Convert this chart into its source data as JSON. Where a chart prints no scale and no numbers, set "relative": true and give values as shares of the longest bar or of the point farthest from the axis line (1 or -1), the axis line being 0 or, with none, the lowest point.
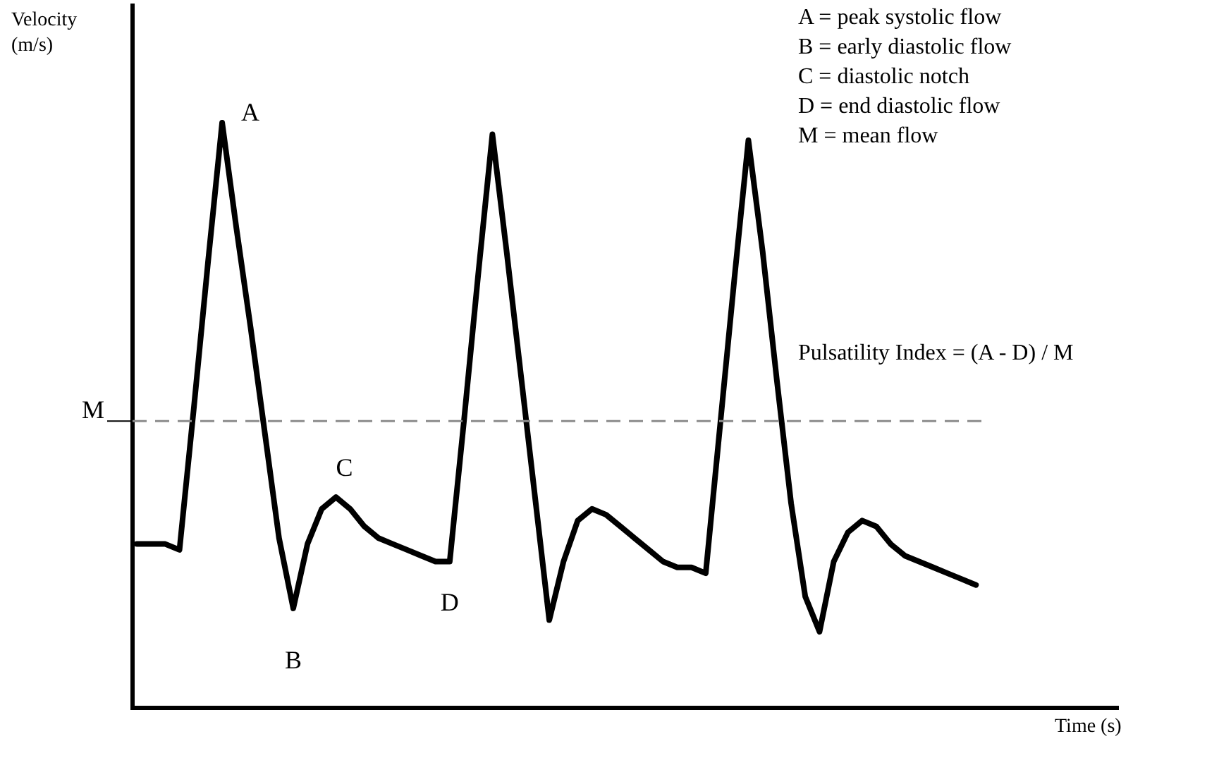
{
  "chart_data": {
    "type": "line",
    "relative": true,
    "xlabel": "Time (s)",
    "ylabel": "Velocity (m/s)",
    "legend": false,
    "grid": false,
    "marker": "none",
    "line_style": "solid",
    "categories": [
      null,
      null,
      null,
      null,
      null,
      null,
      null,
      null,
      null,
      null,
      null,
      null,
      null,
      null,
      null,
      null,
      null,
      null,
      null,
      null,
      null,
      null,
      null,
      null,
      null,
      null,
      null,
      null,
      null,
      null,
      null,
      null,
      null,
      null,
      null,
      null,
      null,
      null,
      null,
      null,
      null,
      null,
      null,
      null,
      null,
      null,
      null,
      null,
      null,
      null,
      null,
      null,
      null,
      null,
      null,
      null,
      null,
      null,
      null,
      null
    ],
    "series": [
      {
        "color": "#000000",
        "values": [
          0.28,
          0.28,
          0.28,
          0.27,
          0.51,
          0.76,
          1,
          0.82,
          0.65,
          0.47,
          0.29,
          0.17,
          0.28,
          0.34,
          0.36,
          0.34,
          0.31,
          0.29,
          0.28,
          0.27,
          0.26,
          0.25,
          0.25,
          0.49,
          0.74,
          0.98,
          0.78,
          0.57,
          0.36,
          0.15,
          0.25,
          0.32,
          0.34,
          0.33,
          0.31,
          0.29,
          0.27,
          0.25,
          0.24,
          0.24,
          0.23,
          0.48,
          0.73,
          0.97,
          0.78,
          0.56,
          0.35,
          0.19,
          0.13,
          0.25,
          0.3,
          0.32,
          0.31,
          0.28,
          0.26,
          0.25,
          0.24,
          0.23,
          0.22,
          0.21
        ]
      }
    ],
    "ref_lines": [
      {
        "axis": "y",
        "value": 0.49,
        "label": "M",
        "color": "#8c8c8c",
        "line_style": "dashed"
      }
    ],
    "annotations": [
      "A",
      "B",
      "C",
      "D",
      "A =  peak systolic flow",
      "B =  early diastolic flow",
      "C =  diastolic notch",
      "D =  end diastolic flow",
      "M =  mean flow",
      "Pulsatility Index = (A - D) / M"
    ]
  }
}
